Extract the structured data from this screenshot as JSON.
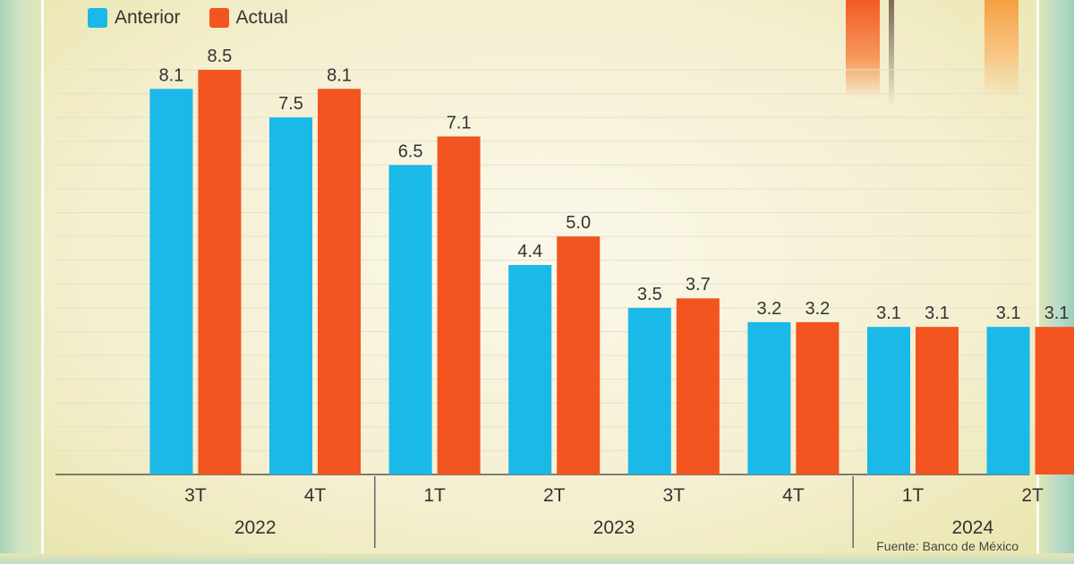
{
  "legend": {
    "series_a": "Anterior",
    "series_b": "Actual"
  },
  "source": "Fuente: Banco de México",
  "colors": {
    "anterior": "#1ab9e8",
    "actual": "#f2551f"
  },
  "chart_data": {
    "type": "bar",
    "categories": [
      "3T",
      "4T",
      "1T",
      "2T",
      "3T",
      "4T",
      "1T",
      "2T"
    ],
    "groups": [
      {
        "label": "2022",
        "count": 2
      },
      {
        "label": "2023",
        "count": 4
      },
      {
        "label": "2024",
        "count": 2
      }
    ],
    "series": [
      {
        "name": "Anterior",
        "values": [
          8.1,
          7.5,
          6.5,
          4.4,
          3.5,
          3.2,
          3.1,
          3.1
        ]
      },
      {
        "name": "Actual",
        "values": [
          8.5,
          8.1,
          7.1,
          5.0,
          3.7,
          3.2,
          3.1,
          3.1
        ]
      }
    ],
    "data_labels": {
      "Anterior": [
        "8.1",
        "7.5",
        "6.5",
        "4.4",
        "3.5",
        "3.2",
        "3.1",
        "3.1"
      ],
      "Actual": [
        "8.5",
        "8.1",
        "7.1",
        "5.0",
        "3.7",
        "3.2",
        "3.1",
        "3.1"
      ]
    },
    "ylim": [
      0,
      8.5
    ],
    "grid": true,
    "legend_position": "top-left"
  }
}
